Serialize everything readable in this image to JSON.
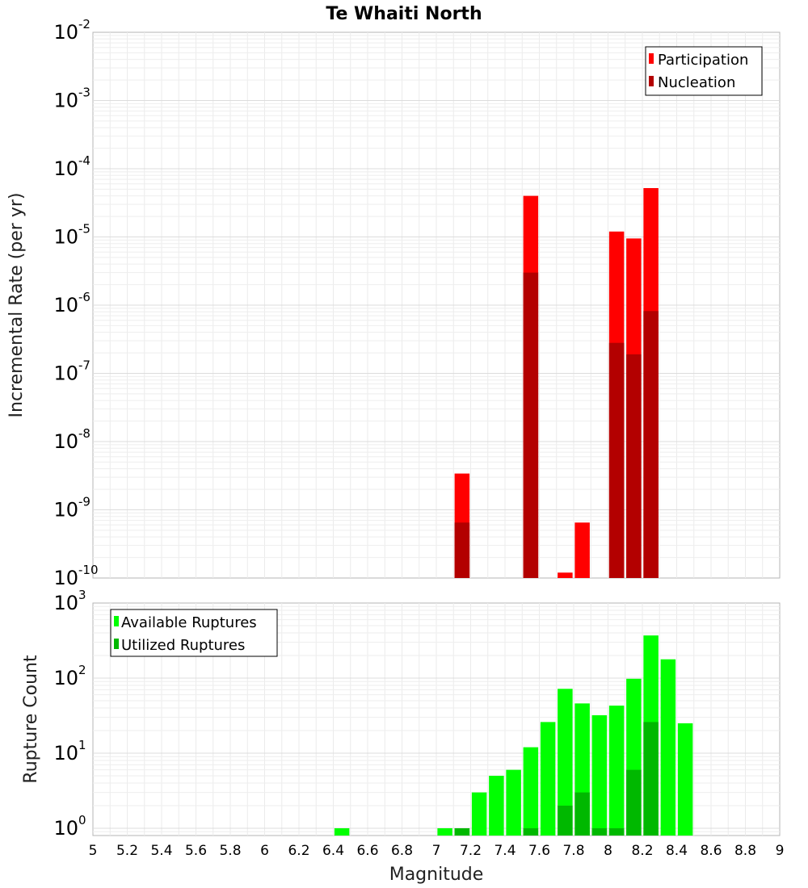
{
  "chart_data": {
    "title": "Te Whaiti North",
    "xlabel": "Magnitude",
    "xlim": [
      5,
      9
    ],
    "xticks": [
      "5",
      "5.2",
      "5.4",
      "5.6",
      "5.8",
      "6",
      "6.2",
      "6.4",
      "6.6",
      "6.8",
      "7",
      "7.2",
      "7.4",
      "7.6",
      "7.8",
      "8",
      "8.2",
      "8.4",
      "8.6",
      "8.8",
      "9"
    ],
    "panels": [
      {
        "id": "rates",
        "type": "bar",
        "ylabel": "Incremental Rate (per yr)",
        "yscale": "log",
        "ylim": [
          1e-10,
          0.01
        ],
        "yticks": [
          {
            "base": "10",
            "exp": "-10"
          },
          {
            "base": "10",
            "exp": "-9"
          },
          {
            "base": "10",
            "exp": "-8"
          },
          {
            "base": "10",
            "exp": "-7"
          },
          {
            "base": "10",
            "exp": "-6"
          },
          {
            "base": "10",
            "exp": "-5"
          },
          {
            "base": "10",
            "exp": "-4"
          },
          {
            "base": "10",
            "exp": "-3"
          },
          {
            "base": "10",
            "exp": "-2"
          }
        ],
        "legend": {
          "position": "top-right"
        },
        "series": [
          {
            "name": "Participation",
            "color": "#ff0000",
            "x": [
              7.15,
              7.55,
              7.75,
              7.85,
              8.05,
              8.15,
              8.25
            ],
            "values": [
              3.4e-09,
              4e-05,
              1.2e-10,
              6.5e-10,
              1.2e-05,
              9.5e-06,
              5.2e-05
            ]
          },
          {
            "name": "Nucleation",
            "color": "#b30000",
            "x": [
              7.15,
              7.55,
              8.05,
              8.15,
              8.25
            ],
            "values": [
              6.5e-10,
              3e-06,
              2.8e-07,
              1.9e-07,
              8.2e-07
            ]
          }
        ]
      },
      {
        "id": "counts",
        "type": "bar",
        "ylabel": "Rupture Count",
        "yscale": "log",
        "ylim": [
          0.8,
          1000
        ],
        "yticks": [
          {
            "base": "10",
            "exp": "0"
          },
          {
            "base": "10",
            "exp": "1"
          },
          {
            "base": "10",
            "exp": "2"
          },
          {
            "base": "10",
            "exp": "3"
          }
        ],
        "legend": {
          "position": "top-left"
        },
        "series": [
          {
            "name": "Available Ruptures",
            "color": "#00ff00",
            "x": [
              6.45,
              7.05,
              7.15,
              7.25,
              7.35,
              7.45,
              7.55,
              7.65,
              7.75,
              7.85,
              7.95,
              8.05,
              8.15,
              8.25,
              8.35,
              8.45
            ],
            "values": [
              1,
              1,
              1,
              3,
              5,
              6,
              12,
              26,
              72,
              46,
              32,
              43,
              98,
              370,
              178,
              25
            ]
          },
          {
            "name": "Utilized Ruptures",
            "color": "#00b800",
            "x": [
              7.15,
              7.55,
              7.75,
              7.85,
              7.95,
              8.05,
              8.15,
              8.25
            ],
            "values": [
              1,
              1,
              2,
              3,
              1,
              1,
              6,
              26
            ]
          }
        ]
      }
    ]
  }
}
